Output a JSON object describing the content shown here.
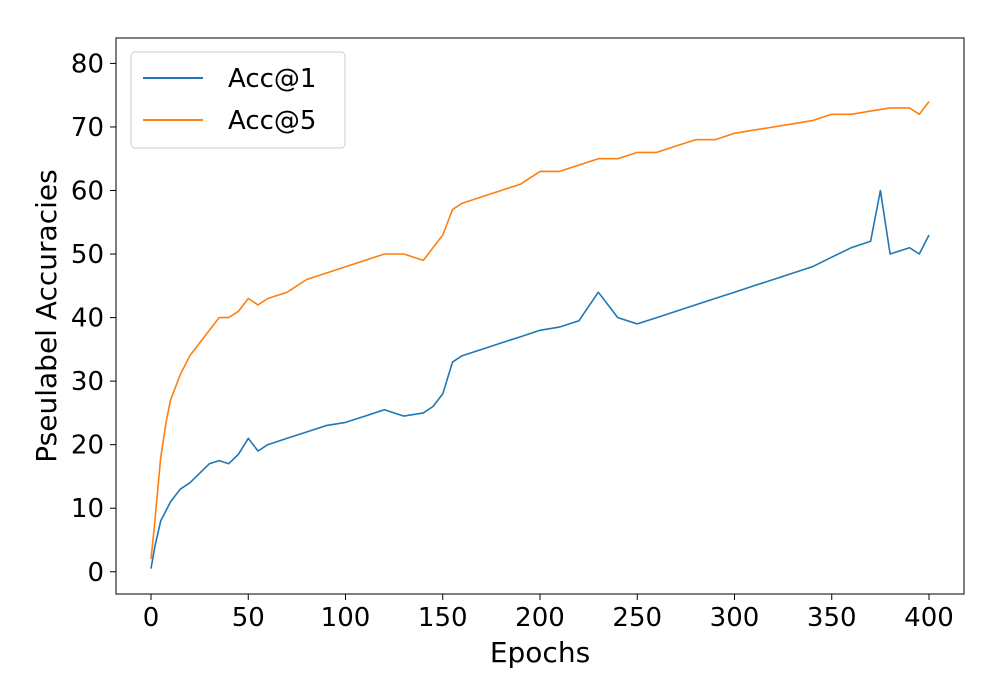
{
  "chart_data": {
    "type": "line",
    "title": "",
    "xlabel": "Epochs",
    "ylabel": "Pseulabel Accuracies",
    "xlim": [
      -18,
      418
    ],
    "ylim": [
      -3.5,
      84
    ],
    "xticks": [
      0,
      50,
      100,
      150,
      200,
      250,
      300,
      350,
      400
    ],
    "yticks": [
      0,
      10,
      20,
      30,
      40,
      50,
      60,
      70,
      80
    ],
    "grid": false,
    "legend_position": "upper left",
    "series": [
      {
        "name": "Acc@1",
        "color": "#1f77b4",
        "points": [
          [
            0,
            0.5
          ],
          [
            2,
            4
          ],
          [
            5,
            8
          ],
          [
            10,
            11
          ],
          [
            15,
            13
          ],
          [
            20,
            14
          ],
          [
            25,
            15.5
          ],
          [
            30,
            17
          ],
          [
            35,
            17.5
          ],
          [
            40,
            17
          ],
          [
            45,
            18.5
          ],
          [
            50,
            21
          ],
          [
            55,
            19
          ],
          [
            60,
            20
          ],
          [
            70,
            21
          ],
          [
            80,
            22
          ],
          [
            90,
            23
          ],
          [
            100,
            23.5
          ],
          [
            110,
            24.5
          ],
          [
            120,
            25.5
          ],
          [
            130,
            24.5
          ],
          [
            140,
            25
          ],
          [
            145,
            26
          ],
          [
            150,
            28
          ],
          [
            155,
            33
          ],
          [
            160,
            34
          ],
          [
            170,
            35
          ],
          [
            180,
            36
          ],
          [
            190,
            37
          ],
          [
            200,
            38
          ],
          [
            210,
            38.5
          ],
          [
            220,
            39.5
          ],
          [
            230,
            44
          ],
          [
            240,
            40
          ],
          [
            250,
            39
          ],
          [
            260,
            40
          ],
          [
            270,
            41
          ],
          [
            280,
            42
          ],
          [
            290,
            43
          ],
          [
            300,
            44
          ],
          [
            310,
            45
          ],
          [
            320,
            46
          ],
          [
            330,
            47
          ],
          [
            340,
            48
          ],
          [
            350,
            49.5
          ],
          [
            360,
            51
          ],
          [
            370,
            52
          ],
          [
            375,
            60
          ],
          [
            380,
            50
          ],
          [
            390,
            51
          ],
          [
            395,
            50
          ],
          [
            400,
            53
          ]
        ]
      },
      {
        "name": "Acc@5",
        "color": "#ff7f0e",
        "points": [
          [
            0,
            2
          ],
          [
            2,
            8
          ],
          [
            5,
            18
          ],
          [
            8,
            24
          ],
          [
            10,
            27
          ],
          [
            15,
            31
          ],
          [
            20,
            34
          ],
          [
            25,
            36
          ],
          [
            30,
            38
          ],
          [
            35,
            40
          ],
          [
            40,
            40
          ],
          [
            45,
            41
          ],
          [
            50,
            43
          ],
          [
            55,
            42
          ],
          [
            60,
            43
          ],
          [
            70,
            44
          ],
          [
            80,
            46
          ],
          [
            90,
            47
          ],
          [
            100,
            48
          ],
          [
            110,
            49
          ],
          [
            120,
            50
          ],
          [
            130,
            50
          ],
          [
            140,
            49
          ],
          [
            145,
            51
          ],
          [
            150,
            53
          ],
          [
            155,
            57
          ],
          [
            160,
            58
          ],
          [
            170,
            59
          ],
          [
            180,
            60
          ],
          [
            190,
            61
          ],
          [
            200,
            63
          ],
          [
            210,
            63
          ],
          [
            220,
            64
          ],
          [
            230,
            65
          ],
          [
            240,
            65
          ],
          [
            250,
            66
          ],
          [
            260,
            66
          ],
          [
            270,
            67
          ],
          [
            280,
            68
          ],
          [
            290,
            68
          ],
          [
            300,
            69
          ],
          [
            310,
            69.5
          ],
          [
            320,
            70
          ],
          [
            330,
            70.5
          ],
          [
            340,
            71
          ],
          [
            350,
            72
          ],
          [
            360,
            72
          ],
          [
            370,
            72.5
          ],
          [
            380,
            73
          ],
          [
            390,
            73
          ],
          [
            395,
            72
          ],
          [
            400,
            74
          ]
        ]
      }
    ]
  }
}
